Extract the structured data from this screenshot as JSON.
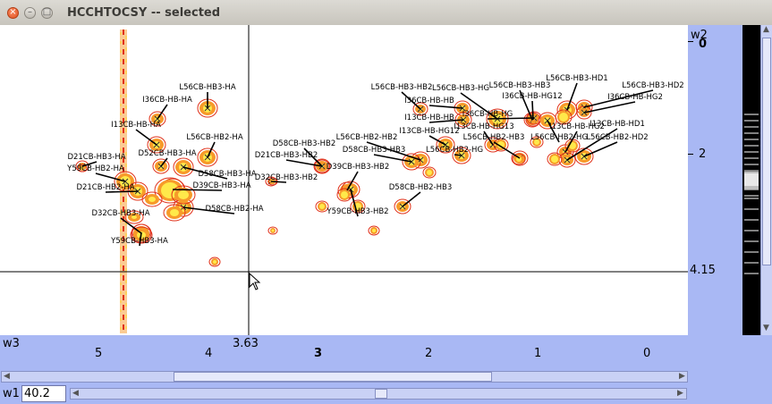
{
  "window": {
    "title": "HCCHTOCSY -- selected",
    "buttons": {
      "close": "×",
      "minimize": "–",
      "maximize": "□"
    }
  },
  "axes": {
    "w2_label": "w2",
    "w2_ticks": [
      "0",
      "2"
    ],
    "w2_cursor": "4.15",
    "w3_label": "w3",
    "w3_ticks": [
      "5",
      "4",
      "3",
      "2",
      "1",
      "0"
    ],
    "w3_cursor": "3.63",
    "w1_label": "w1",
    "w1_value": "40.2"
  },
  "peaks": [
    "L56CB-HB3-HA",
    "I36CB-HB-HA",
    "I13CB-HB-HA",
    "L56CB-HB2-HA",
    "D52CB-HB3-HA",
    "D21CB-HB3-HA",
    "Y59CB-HB2-HA",
    "D58CB-HB3-HA",
    "D39CB-HB3-HA",
    "D21CB-HB2-HA",
    "D58CB-HB2-HA",
    "D32CB-HB3-HA",
    "Y59CB-HB3-HA",
    "D58CB-HB3-HB2",
    "D21CB-HB3-HB2",
    "D39CB-HB3-HB2",
    "D32CB-HB3-HB2",
    "Y59CB-HB3-HB2",
    "D58CB-HB2-HB3",
    "L56CB-HB2-HB2",
    "D58CB-HB3-HB3",
    "L56CB-HB3-HB2",
    "I36CB-HB-HB",
    "L56CB-HB3-HG",
    "I13CB-HB-HB",
    "I13CB-HB-HG12",
    "L56CB-HB2-HG",
    "I13CB-HB-HG13",
    "L56CB-HB2-HB3",
    "L56CB-HB3-HB3",
    "I36CB-HB-HG12",
    "I36CB-HB-HG",
    "L56CB-HB2-HG",
    "L56CB-HB3-HD1",
    "L56CB-HB3-HD2",
    "I36CB-HB-HG2",
    "I13CB-HB-HG2",
    "I13CB-HB-HD1",
    "L56CB-HB2-HD2"
  ]
}
